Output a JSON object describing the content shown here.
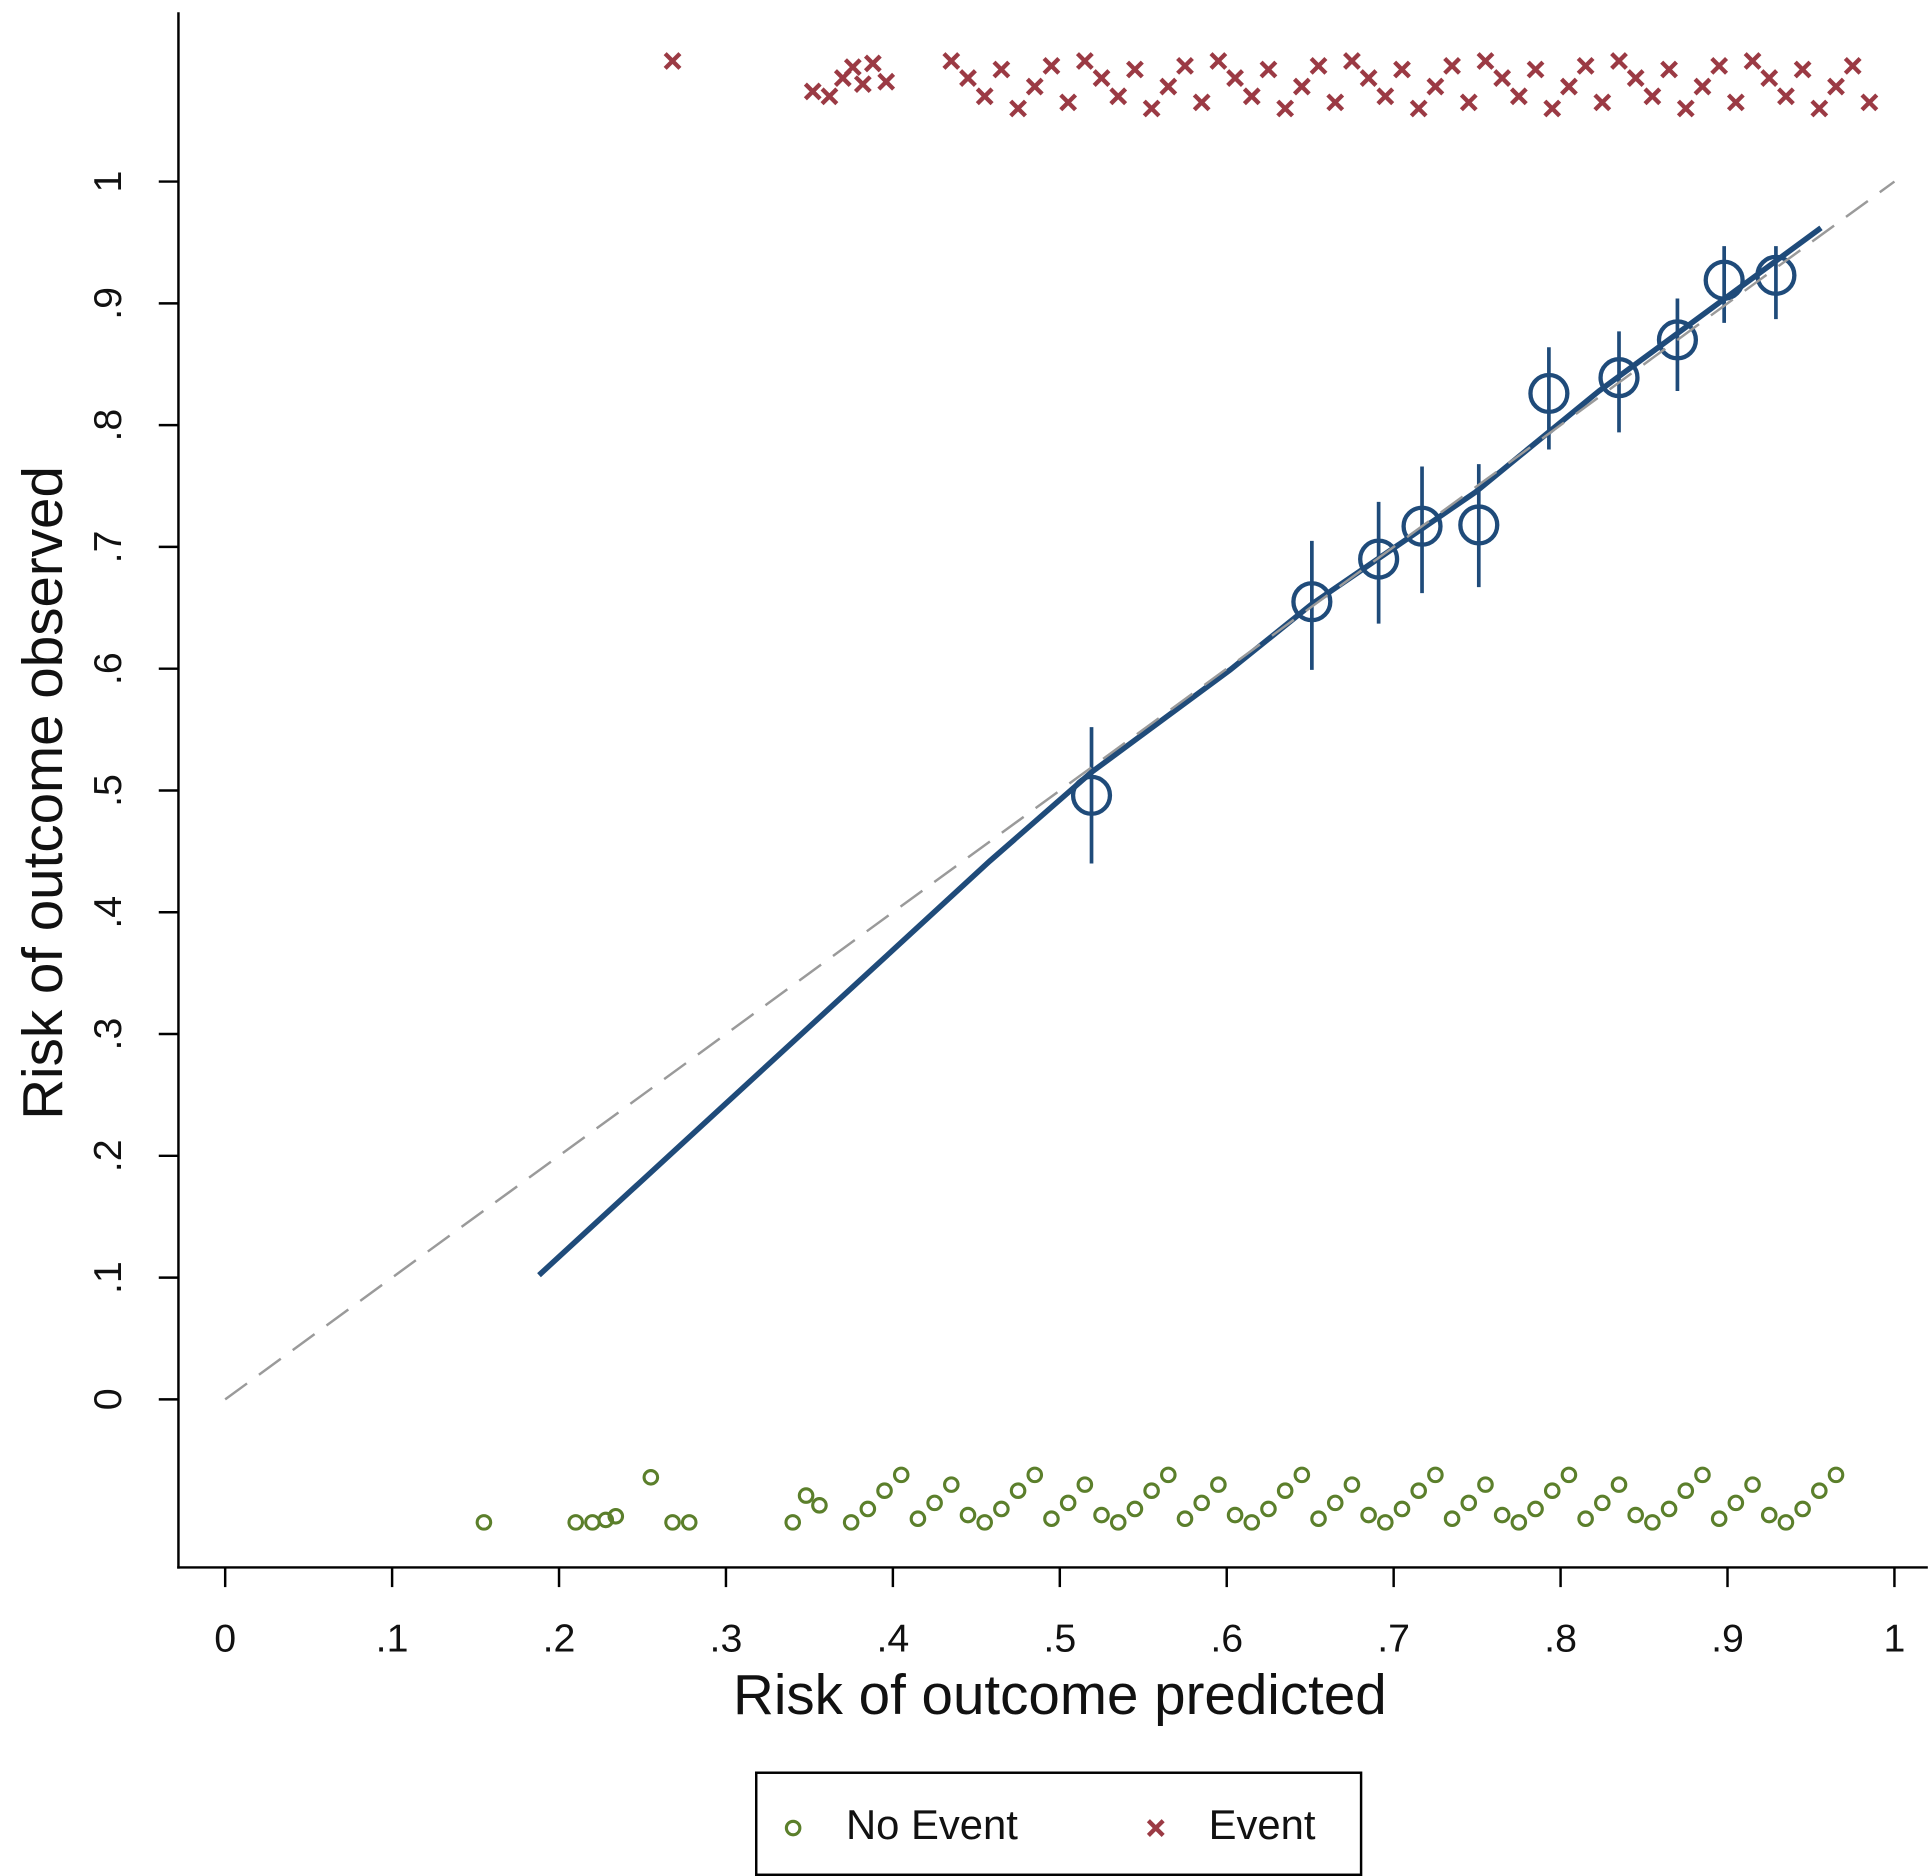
{
  "chart_data": {
    "type": "scatter",
    "xlabel": "Risk of outcome predicted",
    "ylabel": "Risk of outcome observed",
    "xlim": [
      -0.028,
      1.02
    ],
    "ylim": [
      -0.138,
      1.139
    ],
    "xticks": [
      0,
      {
        "value": 0.1,
        "label": ".1"
      },
      {
        "value": 0.2,
        "label": ".2"
      },
      {
        "value": 0.3,
        "label": ".3"
      },
      {
        "value": 0.4,
        "label": ".4"
      },
      {
        "value": 0.5,
        "label": ".5"
      },
      {
        "value": 0.6,
        "label": ".6"
      },
      {
        "value": 0.7,
        "label": ".7"
      },
      {
        "value": 0.8,
        "label": ".8"
      },
      {
        "value": 0.9,
        "label": ".9"
      },
      1
    ],
    "yticks": [
      0,
      {
        "value": 0.1,
        "label": ".1"
      },
      {
        "value": 0.2,
        "label": ".2"
      },
      {
        "value": 0.3,
        "label": ".3"
      },
      {
        "value": 0.4,
        "label": ".4"
      },
      {
        "value": 0.5,
        "label": ".5"
      },
      {
        "value": 0.6,
        "label": ".6"
      },
      {
        "value": 0.7,
        "label": ".7"
      },
      {
        "value": 0.8,
        "label": ".8"
      },
      {
        "value": 0.9,
        "label": ".9"
      },
      1
    ],
    "grid": false,
    "legend": "bottom",
    "series": [
      {
        "name": "No Event",
        "color": "#5b7f2b",
        "marker": "circle",
        "x": [
          0.155,
          0.21,
          0.22,
          0.228,
          0.234,
          0.255,
          0.268,
          0.278,
          0.34,
          0.348,
          0.356,
          0.375,
          0.385,
          0.395,
          0.405,
          0.415,
          0.425,
          0.435,
          0.445,
          0.455,
          0.465,
          0.475,
          0.485,
          0.495,
          0.505,
          0.515,
          0.525,
          0.535,
          0.545,
          0.555,
          0.565,
          0.575,
          0.585,
          0.595,
          0.605,
          0.615,
          0.625,
          0.635,
          0.645,
          0.655,
          0.665,
          0.675,
          0.685,
          0.695,
          0.705,
          0.715,
          0.725,
          0.735,
          0.745,
          0.755,
          0.765,
          0.775,
          0.785,
          0.795,
          0.805,
          0.815,
          0.825,
          0.835,
          0.845,
          0.855,
          0.865,
          0.875,
          0.885,
          0.895,
          0.905,
          0.915,
          0.925,
          0.935,
          0.945,
          0.955,
          0.965
        ],
        "values": [
          -0.101,
          -0.101,
          -0.101,
          -0.099,
          -0.096,
          -0.064,
          -0.101,
          -0.101,
          -0.101,
          -0.079,
          -0.087,
          -0.101,
          -0.09,
          -0.075,
          -0.062,
          -0.098,
          -0.085,
          -0.07,
          -0.095,
          -0.101,
          -0.09,
          -0.075,
          -0.062,
          -0.098,
          -0.085,
          -0.07,
          -0.095,
          -0.101,
          -0.09,
          -0.075,
          -0.062,
          -0.098,
          -0.085,
          -0.07,
          -0.095,
          -0.101,
          -0.09,
          -0.075,
          -0.062,
          -0.098,
          -0.085,
          -0.07,
          -0.095,
          -0.101,
          -0.09,
          -0.075,
          -0.062,
          -0.098,
          -0.085,
          -0.07,
          -0.095,
          -0.101,
          -0.09,
          -0.075,
          -0.062,
          -0.098,
          -0.085,
          -0.07,
          -0.095,
          -0.101,
          -0.09,
          -0.075,
          -0.062,
          -0.098,
          -0.085,
          -0.07,
          -0.095,
          -0.101,
          -0.09,
          -0.075,
          -0.062
        ]
      },
      {
        "name": "Event",
        "color": "#9b3a44",
        "marker": "x",
        "x": [
          0.268,
          0.352,
          0.362,
          0.37,
          0.376,
          0.382,
          0.388,
          0.396,
          0.435,
          0.445,
          0.455,
          0.465,
          0.475,
          0.485,
          0.495,
          0.505,
          0.515,
          0.525,
          0.535,
          0.545,
          0.555,
          0.565,
          0.575,
          0.585,
          0.595,
          0.605,
          0.615,
          0.625,
          0.635,
          0.645,
          0.655,
          0.665,
          0.675,
          0.685,
          0.695,
          0.705,
          0.715,
          0.725,
          0.735,
          0.745,
          0.755,
          0.765,
          0.775,
          0.785,
          0.795,
          0.805,
          0.815,
          0.825,
          0.835,
          0.845,
          0.855,
          0.865,
          0.875,
          0.885,
          0.895,
          0.905,
          0.915,
          0.925,
          0.935,
          0.945,
          0.955,
          0.965,
          0.975,
          0.985
        ],
        "values": [
          1.099,
          1.074,
          1.07,
          1.085,
          1.094,
          1.08,
          1.097,
          1.082,
          1.099,
          1.085,
          1.07,
          1.092,
          1.06,
          1.078,
          1.095,
          1.065,
          1.099,
          1.085,
          1.07,
          1.092,
          1.06,
          1.078,
          1.095,
          1.065,
          1.099,
          1.085,
          1.07,
          1.092,
          1.06,
          1.078,
          1.095,
          1.065,
          1.099,
          1.085,
          1.07,
          1.092,
          1.06,
          1.078,
          1.095,
          1.065,
          1.099,
          1.085,
          1.07,
          1.092,
          1.06,
          1.078,
          1.095,
          1.065,
          1.099,
          1.085,
          1.07,
          1.092,
          1.06,
          1.078,
          1.095,
          1.065,
          1.099,
          1.085,
          1.07,
          1.092,
          1.06,
          1.078,
          1.095,
          1.065
        ]
      },
      {
        "color": "#1f4b7a",
        "marker": "hollow-circle",
        "x": [
          0.519,
          0.651,
          0.691,
          0.717,
          0.751,
          0.793,
          0.835,
          0.87,
          0.898,
          0.929
        ],
        "values": [
          0.496,
          0.655,
          0.69,
          0.717,
          0.718,
          0.826,
          0.839,
          0.87,
          0.919,
          0.923
        ],
        "lower": [
          0.44,
          0.599,
          0.637,
          0.662,
          0.667,
          0.78,
          0.794,
          0.828,
          0.884,
          0.887
        ],
        "upper": [
          0.552,
          0.705,
          0.737,
          0.766,
          0.768,
          0.864,
          0.877,
          0.904,
          0.947,
          0.947
        ]
      },
      {
        "color": "#1f4b7a",
        "line": "solid",
        "x": [
          0.188,
          0.458,
          0.519,
          0.602,
          0.651,
          0.749,
          0.823,
          0.956
        ],
        "values": [
          0.102,
          0.442,
          0.515,
          0.599,
          0.653,
          0.745,
          0.828,
          0.962
        ]
      },
      {
        "color": "#9a9a9a",
        "line": "dashed",
        "x": [
          0,
          1
        ],
        "values": [
          0,
          1
        ]
      }
    ]
  }
}
